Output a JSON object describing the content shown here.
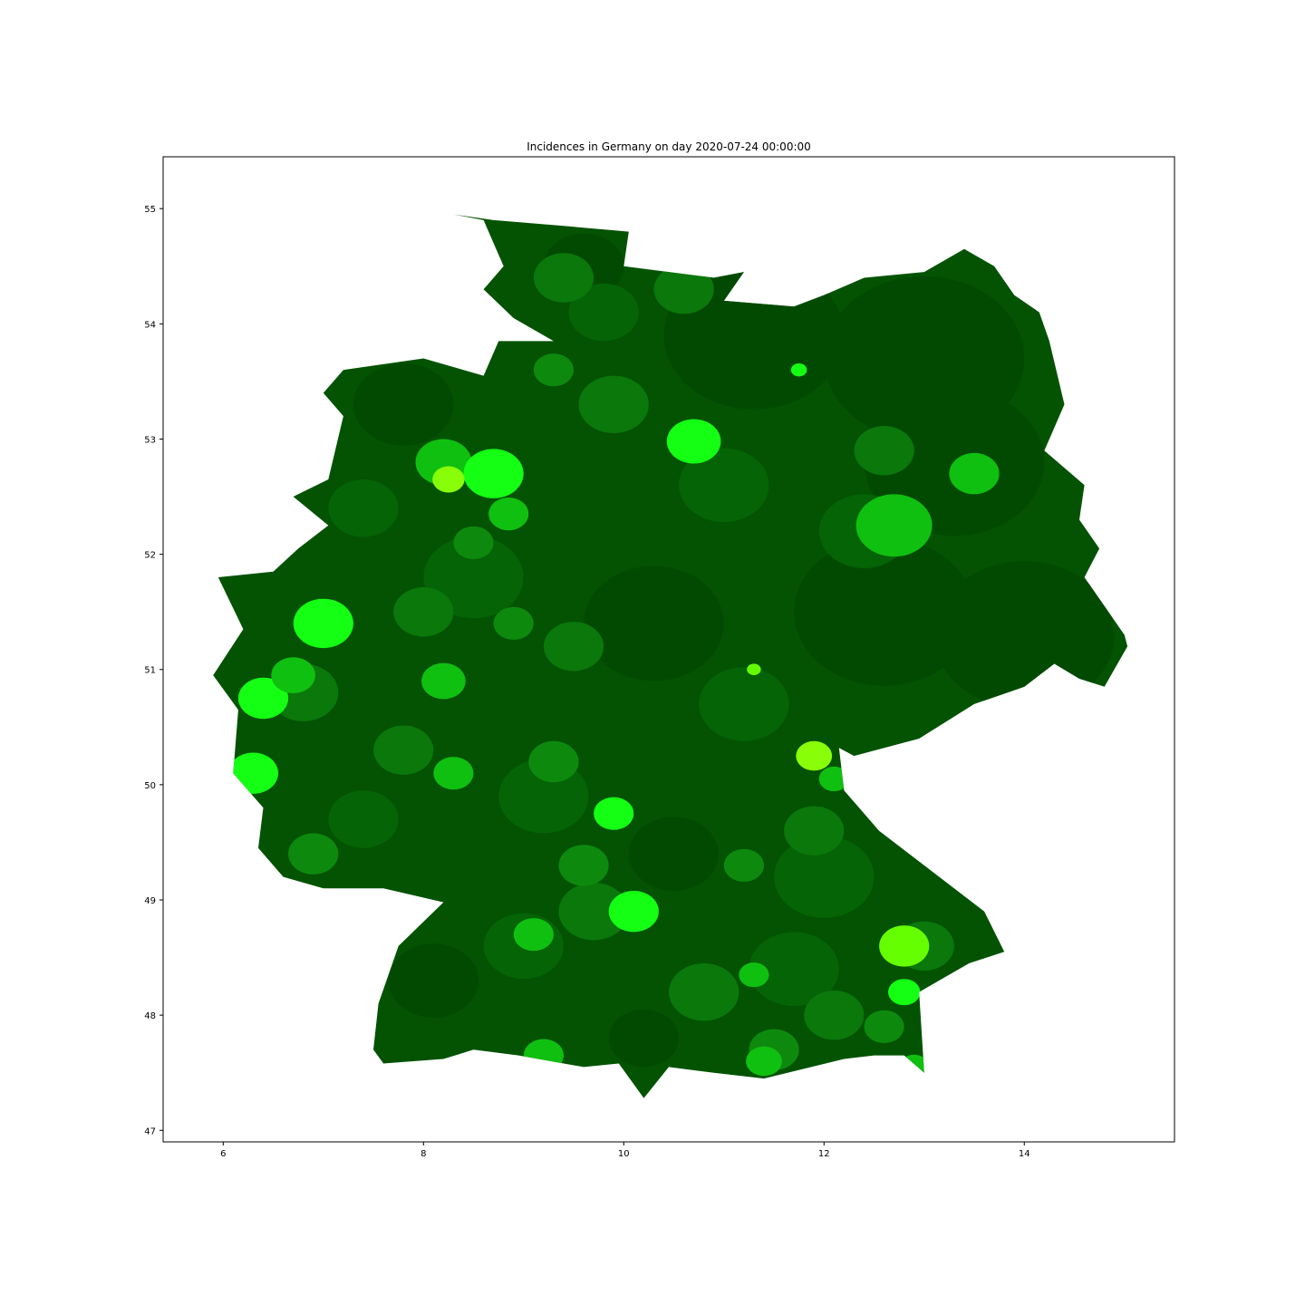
{
  "chart_data": {
    "type": "choropleth-map",
    "title": "Incidences in Germany on day 2020-07-24 00:00:00",
    "xlabel": "",
    "ylabel": "",
    "xlim": [
      5.4,
      15.5
    ],
    "ylim": [
      46.9,
      55.45
    ],
    "xticks": [
      6,
      8,
      10,
      12,
      14
    ],
    "yticks": [
      47,
      48,
      49,
      50,
      51,
      52,
      53,
      54,
      55
    ],
    "grid": false,
    "legend": "none",
    "colors": {
      "base": "#035303",
      "darkest": "#024a02",
      "dark": "#056405",
      "mid": "#0a780a",
      "medium": "#0d8a0d",
      "bright": "#10c010",
      "vivid": "#14ff14",
      "lime": "#66ff00",
      "chartreuse": "#88ff08"
    },
    "coastline": [
      [
        8.3,
        54.95
      ],
      [
        8.7,
        54.9
      ],
      [
        9.4,
        54.85
      ],
      [
        10.05,
        54.8
      ],
      [
        10.0,
        54.5
      ],
      [
        10.9,
        54.4
      ],
      [
        11.2,
        54.45
      ],
      [
        11.0,
        54.2
      ],
      [
        11.7,
        54.15
      ],
      [
        12.0,
        54.25
      ],
      [
        12.4,
        54.4
      ],
      [
        13.0,
        54.45
      ],
      [
        13.4,
        54.65
      ],
      [
        13.7,
        54.5
      ],
      [
        13.9,
        54.25
      ],
      [
        14.15,
        54.1
      ],
      [
        14.25,
        53.85
      ],
      [
        14.4,
        53.3
      ],
      [
        14.2,
        52.9
      ],
      [
        14.6,
        52.6
      ],
      [
        14.55,
        52.3
      ],
      [
        14.75,
        52.05
      ],
      [
        14.6,
        51.8
      ],
      [
        15.0,
        51.3
      ],
      [
        15.03,
        51.2
      ],
      [
        14.8,
        50.85
      ],
      [
        14.55,
        50.92
      ],
      [
        14.3,
        51.05
      ],
      [
        14.0,
        50.85
      ],
      [
        13.5,
        50.7
      ],
      [
        12.95,
        50.4
      ],
      [
        12.3,
        50.25
      ],
      [
        12.15,
        50.32
      ],
      [
        12.2,
        49.95
      ],
      [
        12.55,
        49.6
      ],
      [
        13.0,
        49.3
      ],
      [
        13.6,
        48.9
      ],
      [
        13.8,
        48.55
      ],
      [
        13.45,
        48.45
      ],
      [
        12.95,
        48.2
      ],
      [
        13.0,
        47.5
      ],
      [
        12.8,
        47.65
      ],
      [
        12.5,
        47.65
      ],
      [
        12.2,
        47.62
      ],
      [
        11.4,
        47.45
      ],
      [
        10.9,
        47.5
      ],
      [
        10.45,
        47.55
      ],
      [
        10.2,
        47.28
      ],
      [
        9.95,
        47.58
      ],
      [
        9.6,
        47.55
      ],
      [
        8.95,
        47.65
      ],
      [
        8.5,
        47.7
      ],
      [
        8.2,
        47.62
      ],
      [
        7.6,
        47.58
      ],
      [
        7.5,
        47.7
      ],
      [
        7.55,
        48.1
      ],
      [
        7.75,
        48.6
      ],
      [
        8.2,
        48.98
      ],
      [
        7.6,
        49.1
      ],
      [
        7.0,
        49.1
      ],
      [
        6.6,
        49.2
      ],
      [
        6.35,
        49.45
      ],
      [
        6.4,
        49.8
      ],
      [
        6.1,
        50.1
      ],
      [
        6.15,
        50.65
      ],
      [
        5.9,
        50.95
      ],
      [
        6.2,
        51.35
      ],
      [
        5.95,
        51.8
      ],
      [
        6.5,
        51.85
      ],
      [
        6.75,
        52.05
      ],
      [
        7.05,
        52.25
      ],
      [
        6.7,
        52.5
      ],
      [
        7.05,
        52.65
      ],
      [
        7.2,
        53.2
      ],
      [
        7.0,
        53.4
      ],
      [
        7.2,
        53.6
      ],
      [
        8.0,
        53.7
      ],
      [
        8.6,
        53.55
      ],
      [
        8.75,
        53.85
      ],
      [
        9.3,
        53.85
      ],
      [
        8.9,
        54.05
      ],
      [
        8.6,
        54.3
      ],
      [
        8.8,
        54.5
      ],
      [
        8.6,
        54.9
      ],
      [
        8.3,
        54.95
      ]
    ],
    "regions": [
      {
        "lon": 11.3,
        "lat": 53.9,
        "r": 0.9,
        "color": "darkest"
      },
      {
        "lon": 13.0,
        "lat": 53.7,
        "r": 1.0,
        "color": "darkest"
      },
      {
        "lon": 13.3,
        "lat": 52.8,
        "r": 0.9,
        "color": "darkest"
      },
      {
        "lon": 14.0,
        "lat": 51.3,
        "r": 0.9,
        "color": "darkest"
      },
      {
        "lon": 12.6,
        "lat": 51.5,
        "r": 0.9,
        "color": "darkest"
      },
      {
        "lon": 10.3,
        "lat": 51.4,
        "r": 0.7,
        "color": "darkest"
      },
      {
        "lon": 9.6,
        "lat": 54.5,
        "r": 0.4,
        "color": "darkest"
      },
      {
        "lon": 7.8,
        "lat": 53.3,
        "r": 0.5,
        "color": "darkest"
      },
      {
        "lon": 8.1,
        "lat": 48.3,
        "r": 0.45,
        "color": "darkest"
      },
      {
        "lon": 10.2,
        "lat": 47.8,
        "r": 0.35,
        "color": "darkest"
      },
      {
        "lon": 10.5,
        "lat": 49.4,
        "r": 0.45,
        "color": "darkest"
      },
      {
        "lon": 9.8,
        "lat": 54.1,
        "r": 0.35,
        "color": "dark"
      },
      {
        "lon": 11.0,
        "lat": 52.6,
        "r": 0.45,
        "color": "dark"
      },
      {
        "lon": 8.5,
        "lat": 51.8,
        "r": 0.5,
        "color": "dark"
      },
      {
        "lon": 12.4,
        "lat": 52.2,
        "r": 0.45,
        "color": "dark"
      },
      {
        "lon": 11.2,
        "lat": 50.7,
        "r": 0.45,
        "color": "dark"
      },
      {
        "lon": 9.2,
        "lat": 49.9,
        "r": 0.45,
        "color": "dark"
      },
      {
        "lon": 12.0,
        "lat": 49.2,
        "r": 0.5,
        "color": "dark"
      },
      {
        "lon": 9.0,
        "lat": 48.6,
        "r": 0.4,
        "color": "dark"
      },
      {
        "lon": 11.7,
        "lat": 48.4,
        "r": 0.45,
        "color": "dark"
      },
      {
        "lon": 7.4,
        "lat": 49.7,
        "r": 0.35,
        "color": "dark"
      },
      {
        "lon": 7.4,
        "lat": 52.4,
        "r": 0.35,
        "color": "dark"
      },
      {
        "lon": 9.4,
        "lat": 54.4,
        "r": 0.3,
        "color": "mid"
      },
      {
        "lon": 10.6,
        "lat": 54.3,
        "r": 0.3,
        "color": "mid"
      },
      {
        "lon": 9.9,
        "lat": 53.3,
        "r": 0.35,
        "color": "mid"
      },
      {
        "lon": 8.0,
        "lat": 51.5,
        "r": 0.3,
        "color": "mid"
      },
      {
        "lon": 6.8,
        "lat": 50.8,
        "r": 0.35,
        "color": "mid"
      },
      {
        "lon": 7.8,
        "lat": 50.3,
        "r": 0.3,
        "color": "mid"
      },
      {
        "lon": 9.7,
        "lat": 48.9,
        "r": 0.35,
        "color": "mid"
      },
      {
        "lon": 10.8,
        "lat": 48.2,
        "r": 0.35,
        "color": "mid"
      },
      {
        "lon": 12.1,
        "lat": 48.0,
        "r": 0.3,
        "color": "mid"
      },
      {
        "lon": 13.0,
        "lat": 48.6,
        "r": 0.3,
        "color": "mid"
      },
      {
        "lon": 12.6,
        "lat": 52.9,
        "r": 0.3,
        "color": "mid"
      },
      {
        "lon": 9.5,
        "lat": 51.2,
        "r": 0.3,
        "color": "mid"
      },
      {
        "lon": 11.9,
        "lat": 49.6,
        "r": 0.3,
        "color": "mid"
      },
      {
        "lon": 6.9,
        "lat": 49.4,
        "r": 0.25,
        "color": "medium"
      },
      {
        "lon": 8.9,
        "lat": 51.4,
        "r": 0.2,
        "color": "medium"
      },
      {
        "lon": 11.2,
        "lat": 49.3,
        "r": 0.2,
        "color": "medium"
      },
      {
        "lon": 9.3,
        "lat": 53.6,
        "r": 0.2,
        "color": "medium"
      },
      {
        "lon": 11.5,
        "lat": 47.7,
        "r": 0.25,
        "color": "medium"
      },
      {
        "lon": 12.6,
        "lat": 47.9,
        "r": 0.2,
        "color": "medium"
      },
      {
        "lon": 13.5,
        "lat": 52.7,
        "r": 0.25,
        "color": "bright"
      },
      {
        "lon": 12.7,
        "lat": 52.25,
        "r": 0.38,
        "color": "bright"
      },
      {
        "lon": 10.7,
        "lat": 52.98,
        "r": 0.27,
        "color": "vivid"
      },
      {
        "lon": 8.2,
        "lat": 52.8,
        "r": 0.28,
        "color": "bright"
      },
      {
        "lon": 8.7,
        "lat": 52.7,
        "r": 0.3,
        "color": "vivid"
      },
      {
        "lon": 8.85,
        "lat": 52.35,
        "r": 0.2,
        "color": "bright"
      },
      {
        "lon": 8.5,
        "lat": 52.1,
        "r": 0.2,
        "color": "medium"
      },
      {
        "lon": 8.25,
        "lat": 52.65,
        "r": 0.16,
        "color": "chartreuse"
      },
      {
        "lon": 7.0,
        "lat": 51.4,
        "r": 0.3,
        "color": "vivid"
      },
      {
        "lon": 6.4,
        "lat": 50.75,
        "r": 0.25,
        "color": "vivid"
      },
      {
        "lon": 6.3,
        "lat": 50.1,
        "r": 0.25,
        "color": "vivid"
      },
      {
        "lon": 6.7,
        "lat": 50.95,
        "r": 0.22,
        "color": "bright"
      },
      {
        "lon": 8.2,
        "lat": 50.9,
        "r": 0.22,
        "color": "bright"
      },
      {
        "lon": 8.3,
        "lat": 50.1,
        "r": 0.2,
        "color": "bright"
      },
      {
        "lon": 9.3,
        "lat": 50.2,
        "r": 0.25,
        "color": "medium"
      },
      {
        "lon": 9.6,
        "lat": 49.3,
        "r": 0.25,
        "color": "medium"
      },
      {
        "lon": 9.1,
        "lat": 48.7,
        "r": 0.2,
        "color": "bright"
      },
      {
        "lon": 10.1,
        "lat": 48.9,
        "r": 0.25,
        "color": "vivid"
      },
      {
        "lon": 9.9,
        "lat": 49.75,
        "r": 0.2,
        "color": "vivid"
      },
      {
        "lon": 11.9,
        "lat": 50.25,
        "r": 0.18,
        "color": "chartreuse"
      },
      {
        "lon": 12.1,
        "lat": 50.05,
        "r": 0.15,
        "color": "bright"
      },
      {
        "lon": 12.8,
        "lat": 48.6,
        "r": 0.25,
        "color": "lime"
      },
      {
        "lon": 12.8,
        "lat": 48.2,
        "r": 0.16,
        "color": "vivid"
      },
      {
        "lon": 11.4,
        "lat": 47.6,
        "r": 0.18,
        "color": "bright"
      },
      {
        "lon": 9.2,
        "lat": 47.65,
        "r": 0.2,
        "color": "bright"
      },
      {
        "lon": 11.3,
        "lat": 48.35,
        "r": 0.15,
        "color": "bright"
      },
      {
        "lon": 11.75,
        "lat": 53.6,
        "r": 0.08,
        "color": "vivid"
      },
      {
        "lon": 11.3,
        "lat": 51.0,
        "r": 0.07,
        "color": "lime"
      },
      {
        "lon": 12.9,
        "lat": 47.55,
        "r": 0.15,
        "color": "bright"
      }
    ]
  }
}
